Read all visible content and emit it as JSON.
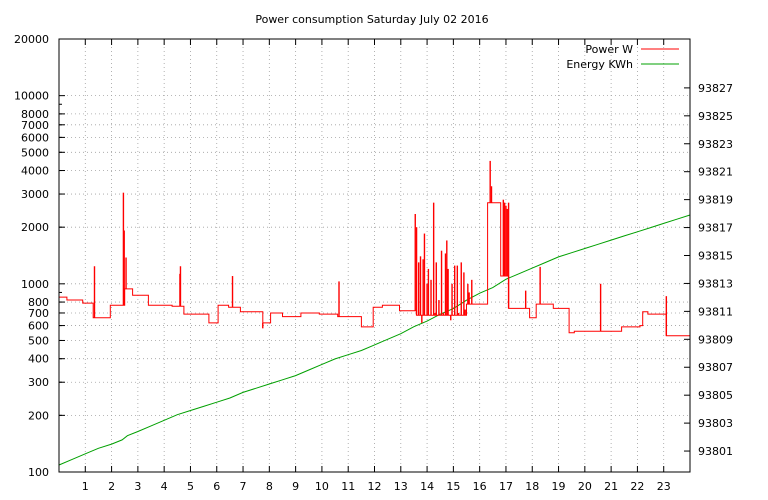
{
  "chart_data": {
    "type": "line",
    "title": "Power consumption Saturday July 02 2016",
    "xlabel": "",
    "ylabel": "",
    "y2label": "",
    "x_ticks": [
      "1",
      "2",
      "3",
      "4",
      "5",
      "6",
      "7",
      "8",
      "9",
      "10",
      "11",
      "12",
      "13",
      "14",
      "15",
      "16",
      "17",
      "18",
      "19",
      "20",
      "21",
      "22",
      "23"
    ],
    "xlim": [
      0,
      24
    ],
    "y_scale": "log",
    "ylim": [
      100,
      20000
    ],
    "y_ticks": [
      "100",
      "200",
      "300",
      "400",
      "500",
      "600",
      "700",
      "800",
      "1000",
      "2000",
      "3000",
      "4000",
      "5000",
      "6000",
      "7000",
      "8000",
      "10000",
      "20000"
    ],
    "y2lim": [
      93799.5,
      93830.5
    ],
    "y2_ticks": [
      "93801",
      "93803",
      "93805",
      "93807",
      "93809",
      "93811",
      "93813",
      "93815",
      "93817",
      "93819",
      "93821",
      "93823",
      "93825",
      "93827"
    ],
    "grid": true,
    "legend_position": "top-right",
    "series": [
      {
        "name": "Power W",
        "color": "#ff0000",
        "axis": "left",
        "segments": [
          [
            0,
            850
          ],
          [
            0.3,
            820
          ],
          [
            0.9,
            790
          ],
          [
            1.3,
            660
          ],
          [
            1.95,
            770
          ],
          [
            2.5,
            940
          ],
          [
            2.8,
            870
          ],
          [
            3.4,
            770
          ],
          [
            4.3,
            760
          ],
          [
            4.75,
            690
          ],
          [
            5.7,
            620
          ],
          [
            6.05,
            770
          ],
          [
            6.45,
            750
          ],
          [
            6.9,
            710
          ],
          [
            7.75,
            620
          ],
          [
            8.05,
            700
          ],
          [
            8.5,
            670
          ],
          [
            9.2,
            700
          ],
          [
            9.9,
            690
          ],
          [
            10.6,
            670
          ],
          [
            11.5,
            590
          ],
          [
            11.95,
            750
          ],
          [
            12.3,
            770
          ],
          [
            12.95,
            720
          ],
          [
            13.6,
            680
          ],
          [
            15.5,
            780
          ],
          [
            16.3,
            2700
          ],
          [
            16.8,
            1100
          ],
          [
            17.1,
            740
          ],
          [
            17.9,
            660
          ],
          [
            18.15,
            780
          ],
          [
            18.8,
            740
          ],
          [
            19.4,
            550
          ],
          [
            19.6,
            560
          ],
          [
            21.4,
            590
          ],
          [
            22.1,
            600
          ],
          [
            22.2,
            710
          ],
          [
            22.4,
            690
          ],
          [
            23.1,
            530
          ],
          [
            24,
            530
          ]
        ],
        "spikes": [
          [
            1.35,
            1240
          ],
          [
            2.45,
            3050
          ],
          [
            2.48,
            1920
          ],
          [
            2.55,
            1380
          ],
          [
            4.6,
            1130
          ],
          [
            4.62,
            1240
          ],
          [
            6.6,
            1100
          ],
          [
            7.75,
            580
          ],
          [
            10.65,
            1030
          ],
          [
            13.55,
            2350
          ],
          [
            13.6,
            2000
          ],
          [
            13.68,
            1300
          ],
          [
            13.75,
            1400
          ],
          [
            13.8,
            620
          ],
          [
            13.85,
            1350
          ],
          [
            13.9,
            1850
          ],
          [
            14.0,
            1000
          ],
          [
            14.05,
            1200
          ],
          [
            14.15,
            1050
          ],
          [
            14.25,
            2700
          ],
          [
            14.3,
            700
          ],
          [
            14.35,
            1300
          ],
          [
            14.45,
            820
          ],
          [
            14.55,
            1500
          ],
          [
            14.62,
            700
          ],
          [
            14.7,
            1450
          ],
          [
            14.75,
            1700
          ],
          [
            14.8,
            1200
          ],
          [
            14.9,
            640
          ],
          [
            14.95,
            1000
          ],
          [
            15.05,
            1250
          ],
          [
            15.15,
            1250
          ],
          [
            15.2,
            700
          ],
          [
            15.3,
            1300
          ],
          [
            15.4,
            1150
          ],
          [
            15.45,
            730
          ],
          [
            15.55,
            1000
          ],
          [
            15.6,
            900
          ],
          [
            15.7,
            1050
          ],
          [
            16.4,
            4500
          ],
          [
            16.45,
            3300
          ],
          [
            16.9,
            2800
          ],
          [
            16.95,
            2700
          ],
          [
            17.0,
            2600
          ],
          [
            17.05,
            2500
          ],
          [
            17.1,
            2700
          ],
          [
            17.75,
            920
          ],
          [
            18.3,
            1230
          ],
          [
            20.6,
            1000
          ],
          [
            23.1,
            860
          ]
        ]
      },
      {
        "name": "Energy KWh",
        "color": "#00a000",
        "axis": "right",
        "x": [
          0,
          0.5,
          1,
          1.5,
          2,
          2.4,
          2.6,
          3,
          3.5,
          4,
          4.5,
          5,
          5.5,
          6,
          6.5,
          7,
          7.5,
          8,
          8.5,
          9,
          9.5,
          10,
          10.5,
          11,
          11.5,
          12,
          12.5,
          13,
          13.5,
          14,
          14.5,
          15,
          15.5,
          16,
          16.5,
          17,
          17.5,
          18,
          18.5,
          19,
          19.5,
          20,
          20.5,
          21,
          21.5,
          22,
          22.5,
          23,
          23.5,
          24
        ],
        "values": [
          93800.0,
          93800.4,
          93800.8,
          93801.2,
          93801.5,
          93801.8,
          93802.1,
          93802.4,
          93802.8,
          93803.2,
          93803.6,
          93803.9,
          93804.2,
          93804.5,
          93804.8,
          93805.2,
          93805.5,
          93805.8,
          93806.1,
          93806.4,
          93806.8,
          93807.2,
          93807.6,
          93807.9,
          93808.2,
          93808.6,
          93809.0,
          93809.4,
          93809.9,
          93810.3,
          93810.8,
          93811.2,
          93811.8,
          93812.3,
          93812.7,
          93813.3,
          93813.7,
          93814.1,
          93814.5,
          93814.9,
          93815.2,
          93815.5,
          93815.8,
          93816.1,
          93816.4,
          93816.7,
          93817.0,
          93817.3,
          93817.6,
          93817.9
        ]
      }
    ]
  }
}
